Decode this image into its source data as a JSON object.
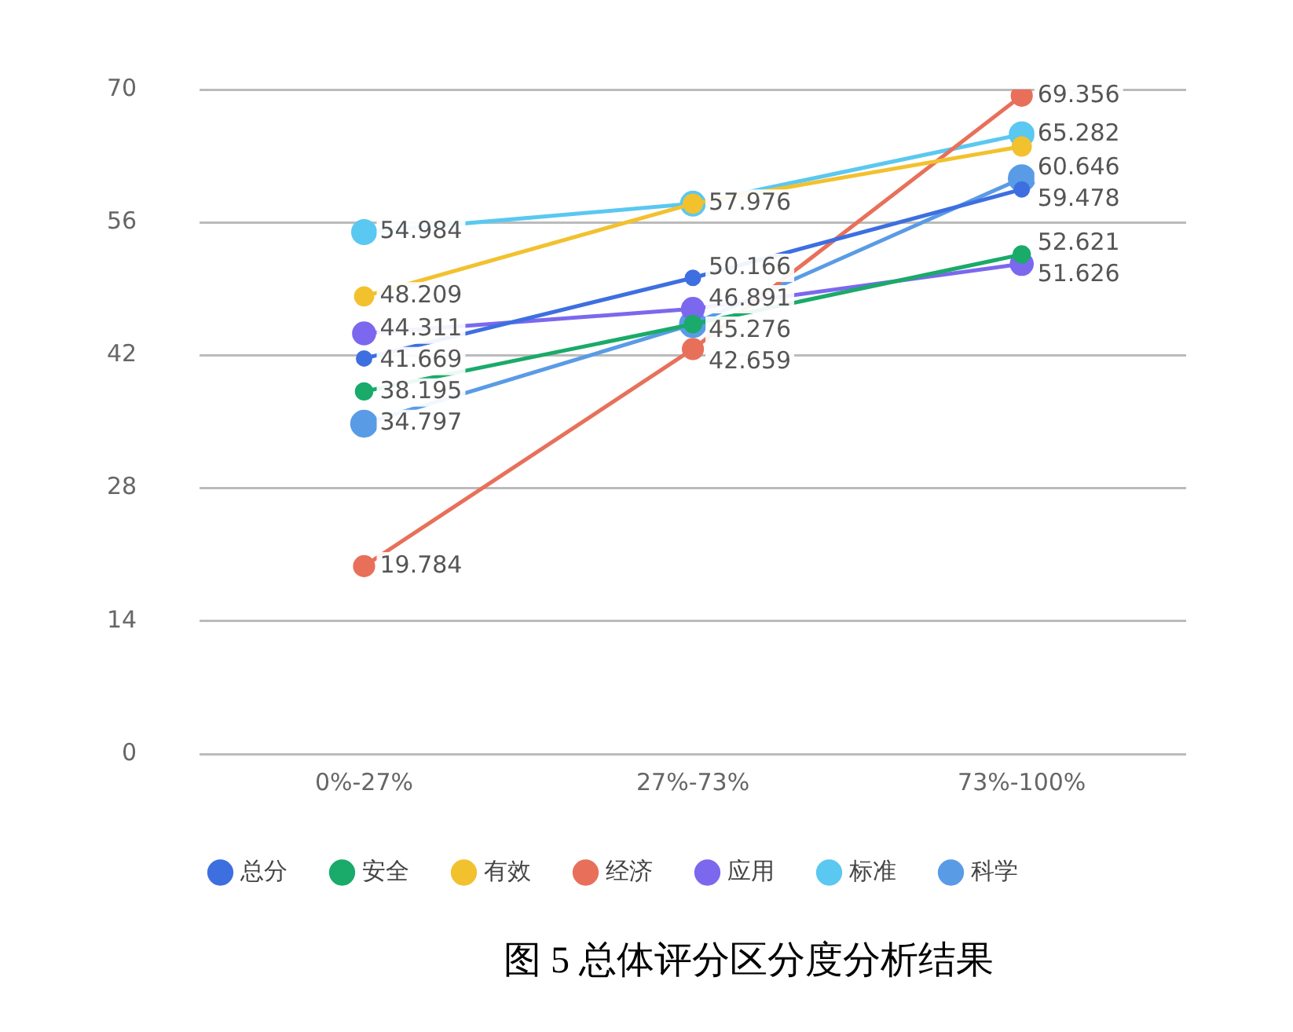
{
  "chart_data": {
    "type": "line",
    "title": "图 5 总体评分区分度分析结果",
    "categories": [
      "0%-27%",
      "27%-73%",
      "73%-100%"
    ],
    "series": [
      {
        "name": "总分",
        "color": "#3d6fe0",
        "values": [
          41.669,
          50.166,
          59.478
        ],
        "value_labels": [
          "41.669",
          "50.166",
          "59.478"
        ]
      },
      {
        "name": "安全",
        "color": "#1aaa6a",
        "values": [
          38.195,
          45.276,
          52.621
        ],
        "value_labels": [
          "38.195",
          "45.276",
          "52.621"
        ]
      },
      {
        "name": "有效",
        "color": "#f2c12e",
        "values": [
          48.209,
          57.976,
          64
        ],
        "value_labels": [
          "48.209",
          null,
          null
        ]
      },
      {
        "name": "经济",
        "color": "#e8705a",
        "values": [
          19.784,
          42.659,
          69.356
        ],
        "value_labels": [
          "19.784",
          "42.659",
          "69.356"
        ]
      },
      {
        "name": "应用",
        "color": "#7b68ee",
        "values": [
          44.311,
          46.891,
          51.626
        ],
        "value_labels": [
          "44.311",
          "46.891",
          "51.626"
        ]
      },
      {
        "name": "标准",
        "color": "#5ac8f0",
        "values": [
          54.984,
          57.976,
          65.282
        ],
        "value_labels": [
          "54.984",
          "57.976",
          "65.282"
        ]
      },
      {
        "name": "科学",
        "color": "#5a9be6",
        "values": [
          34.797,
          45.276,
          60.646
        ],
        "value_labels": [
          "34.797",
          null,
          "60.646"
        ]
      }
    ],
    "ylim": [
      0,
      70
    ],
    "yticks": [
      0,
      14,
      28,
      42,
      56,
      70
    ],
    "grid": "y",
    "legend": "bottom",
    "marker": "circle",
    "line_style": "solid"
  }
}
